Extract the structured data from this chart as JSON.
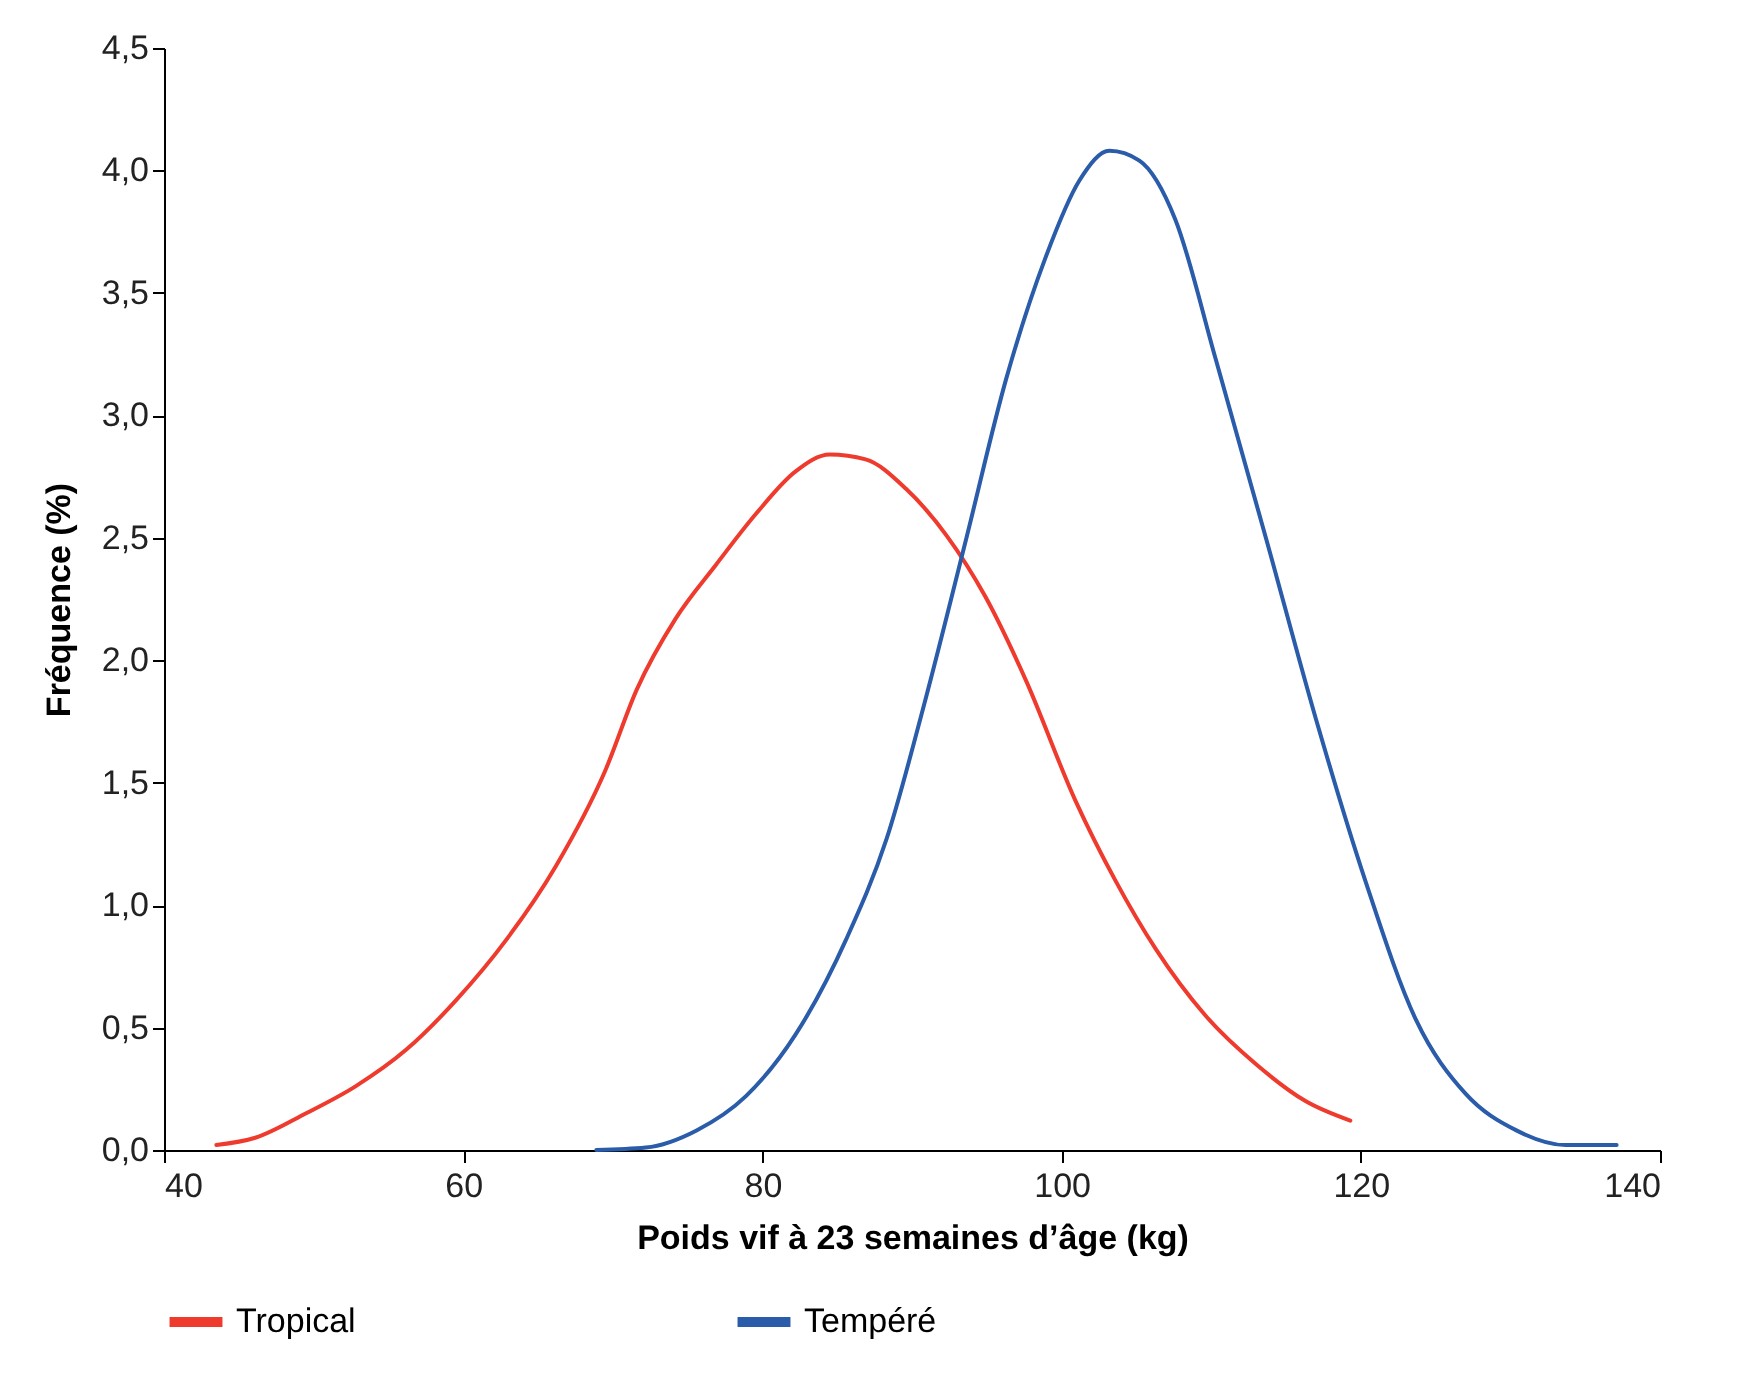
{
  "chart_data": {
    "type": "line",
    "xlabel": "Poids vif à 23 semaines d’âge (kg)",
    "ylabel": "Fréquence (%)",
    "xlim": [
      40,
      140
    ],
    "xticks": [
      40,
      60,
      80,
      100,
      120,
      140
    ],
    "ylim": [
      0,
      4.5
    ],
    "yticks": [
      {
        "value": 0,
        "label": "0,0"
      },
      {
        "value": 0.5,
        "label": "0,5"
      },
      {
        "value": 1,
        "label": "1,0"
      },
      {
        "value": 1.5,
        "label": "1,5"
      },
      {
        "value": 2,
        "label": "2,0"
      },
      {
        "value": 2.5,
        "label": "2,5"
      },
      {
        "value": 3,
        "label": "3,0"
      },
      {
        "value": 3.5,
        "label": "3,5"
      },
      {
        "value": 4,
        "label": "4,0"
      },
      {
        "value": 4.5,
        "label": "4,5"
      }
    ],
    "grid": false,
    "legend": "bottom",
    "marker": "none",
    "line_style": "solid",
    "series": [
      {
        "name": "Tropical",
        "color": "#ee3b2e",
        "x": [
          43.5,
          46.1,
          49.5,
          52.8,
          56.2,
          59.5,
          62.9,
          66.2,
          69.5,
          71.6,
          74.2,
          76.9,
          79.6,
          82.2,
          84.5,
          86.9,
          89.6,
          92.3,
          94.9,
          97.6,
          100.9,
          103.6,
          106.3,
          109.6,
          113.0,
          116.3,
          119.3
        ],
        "values": [
          0.02,
          0.05,
          0.15,
          0.26,
          0.41,
          0.61,
          0.86,
          1.16,
          1.55,
          1.88,
          2.17,
          2.39,
          2.6,
          2.77,
          2.84,
          2.82,
          2.7,
          2.51,
          2.26,
          1.92,
          1.43,
          1.1,
          0.82,
          0.55,
          0.35,
          0.2,
          0.12
        ]
      },
      {
        "name": "Tempéré",
        "color": "#2a5caa",
        "x": [
          68.9,
          72.2,
          75.6,
          78.9,
          82.2,
          85.6,
          88.3,
          90.9,
          93.6,
          96.3,
          98.9,
          101.2,
          103.2,
          105.2,
          107.6,
          110.3,
          113.7,
          117.0,
          120.3,
          123.7,
          127.0,
          130.4,
          133.7,
          137.1
        ],
        "values": [
          0,
          0.01,
          0.08,
          0.22,
          0.47,
          0.86,
          1.27,
          1.84,
          2.49,
          3.15,
          3.64,
          3.96,
          4.08,
          4.04,
          3.8,
          3.23,
          2.49,
          1.76,
          1.1,
          0.53,
          0.23,
          0.08,
          0.02,
          0.02
        ]
      }
    ]
  }
}
